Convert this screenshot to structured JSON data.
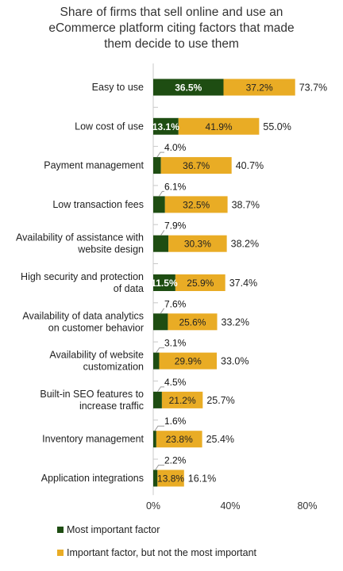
{
  "chart_data": {
    "type": "bar",
    "orientation": "horizontal",
    "stacked": true,
    "title": [
      "Share of firms that sell online and use an",
      "eCommerce platform citing factors that made",
      "them decide to use them"
    ],
    "categories": [
      [
        "Easy to use"
      ],
      [
        "Low cost of use"
      ],
      [
        "Payment management"
      ],
      [
        "Low transaction fees"
      ],
      [
        "Availability of assistance with",
        "website design"
      ],
      [
        "High security and protection",
        "of data"
      ],
      [
        "Availability of data analytics",
        "on customer behavior"
      ],
      [
        "Availability of website",
        "customization"
      ],
      [
        "Built-in SEO features to",
        "increase traffic"
      ],
      [
        "Inventory management"
      ],
      [
        "Application integrations"
      ]
    ],
    "series": [
      {
        "name": "Most important factor",
        "color": "#1e4d12",
        "values": [
          36.5,
          13.1,
          4.0,
          6.1,
          7.9,
          11.5,
          7.6,
          3.1,
          4.5,
          1.6,
          2.2
        ],
        "labels": [
          "36.5%",
          "13.1%",
          "4.0%",
          "6.1%",
          "7.9%",
          "11.5%",
          "7.6%",
          "3.1%",
          "4.5%",
          "1.6%",
          "2.2%"
        ]
      },
      {
        "name": "Important factor, but not the most important",
        "color": "#e9ac25",
        "values": [
          37.2,
          41.9,
          36.7,
          32.5,
          30.3,
          25.9,
          25.6,
          29.9,
          21.2,
          23.8,
          13.8
        ],
        "labels": [
          "37.2%",
          "41.9%",
          "36.7%",
          "32.5%",
          "30.3%",
          "25.9%",
          "25.6%",
          "29.9%",
          "21.2%",
          "23.8%",
          "13.8%"
        ]
      }
    ],
    "totals": [
      "73.7%",
      "55.0%",
      "40.7%",
      "38.7%",
      "38.2%",
      "37.4%",
      "33.2%",
      "33.0%",
      "25.7%",
      "25.4%",
      "16.1%"
    ],
    "xlim": [
      0,
      80
    ],
    "xticks": [
      0,
      40,
      80
    ],
    "xtick_labels": [
      "0%",
      "40%",
      "80%"
    ],
    "legend": "bottom",
    "grid": false
  }
}
